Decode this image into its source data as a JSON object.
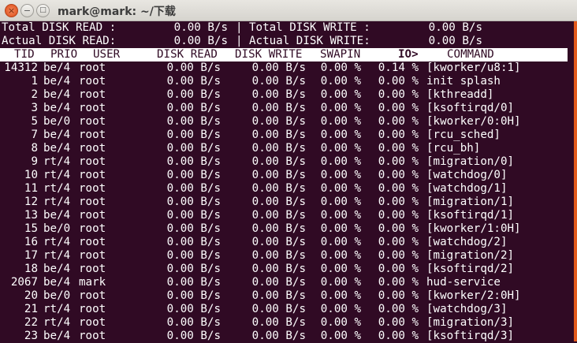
{
  "window": {
    "title": "mark@mark: ~/下载",
    "close_label": "×",
    "minimize_label": "−",
    "maximize_label": "□"
  },
  "colors": {
    "background": "#300a24",
    "foreground": "#ffffff",
    "header_bg": "#ffffff"
  },
  "summary": {
    "total_read_label": "Total DISK READ :",
    "total_read": "0.00 B/s",
    "total_write_label": "Total DISK WRITE :",
    "total_write": "0.00 B/s",
    "actual_read_label": "Actual DISK READ:",
    "actual_read": "0.00 B/s",
    "actual_write_label": "Actual DISK WRITE:",
    "actual_write": "0.00 B/s",
    "separator": "|"
  },
  "columns": {
    "tid": "TID",
    "prio": "PRIO",
    "user": "USER",
    "disk_read": "DISK READ",
    "disk_write": "DISK WRITE",
    "swapin": "SWAPIN",
    "io": "IO>",
    "command": "COMMAND"
  },
  "rows": [
    {
      "tid": "14312",
      "prio": "be/4",
      "user": "root",
      "read": "0.00 B/s",
      "write": "0.00 B/s",
      "swapin": "0.00 %",
      "io": "0.14 %",
      "command": "[kworker/u8:1]"
    },
    {
      "tid": "1",
      "prio": "be/4",
      "user": "root",
      "read": "0.00 B/s",
      "write": "0.00 B/s",
      "swapin": "0.00 %",
      "io": "0.00 %",
      "command": "init splash"
    },
    {
      "tid": "2",
      "prio": "be/4",
      "user": "root",
      "read": "0.00 B/s",
      "write": "0.00 B/s",
      "swapin": "0.00 %",
      "io": "0.00 %",
      "command": "[kthreadd]"
    },
    {
      "tid": "3",
      "prio": "be/4",
      "user": "root",
      "read": "0.00 B/s",
      "write": "0.00 B/s",
      "swapin": "0.00 %",
      "io": "0.00 %",
      "command": "[ksoftirqd/0]"
    },
    {
      "tid": "5",
      "prio": "be/0",
      "user": "root",
      "read": "0.00 B/s",
      "write": "0.00 B/s",
      "swapin": "0.00 %",
      "io": "0.00 %",
      "command": "[kworker/0:0H]"
    },
    {
      "tid": "7",
      "prio": "be/4",
      "user": "root",
      "read": "0.00 B/s",
      "write": "0.00 B/s",
      "swapin": "0.00 %",
      "io": "0.00 %",
      "command": "[rcu_sched]"
    },
    {
      "tid": "8",
      "prio": "be/4",
      "user": "root",
      "read": "0.00 B/s",
      "write": "0.00 B/s",
      "swapin": "0.00 %",
      "io": "0.00 %",
      "command": "[rcu_bh]"
    },
    {
      "tid": "9",
      "prio": "rt/4",
      "user": "root",
      "read": "0.00 B/s",
      "write": "0.00 B/s",
      "swapin": "0.00 %",
      "io": "0.00 %",
      "command": "[migration/0]"
    },
    {
      "tid": "10",
      "prio": "rt/4",
      "user": "root",
      "read": "0.00 B/s",
      "write": "0.00 B/s",
      "swapin": "0.00 %",
      "io": "0.00 %",
      "command": "[watchdog/0]"
    },
    {
      "tid": "11",
      "prio": "rt/4",
      "user": "root",
      "read": "0.00 B/s",
      "write": "0.00 B/s",
      "swapin": "0.00 %",
      "io": "0.00 %",
      "command": "[watchdog/1]"
    },
    {
      "tid": "12",
      "prio": "rt/4",
      "user": "root",
      "read": "0.00 B/s",
      "write": "0.00 B/s",
      "swapin": "0.00 %",
      "io": "0.00 %",
      "command": "[migration/1]"
    },
    {
      "tid": "13",
      "prio": "be/4",
      "user": "root",
      "read": "0.00 B/s",
      "write": "0.00 B/s",
      "swapin": "0.00 %",
      "io": "0.00 %",
      "command": "[ksoftirqd/1]"
    },
    {
      "tid": "15",
      "prio": "be/0",
      "user": "root",
      "read": "0.00 B/s",
      "write": "0.00 B/s",
      "swapin": "0.00 %",
      "io": "0.00 %",
      "command": "[kworker/1:0H]"
    },
    {
      "tid": "16",
      "prio": "rt/4",
      "user": "root",
      "read": "0.00 B/s",
      "write": "0.00 B/s",
      "swapin": "0.00 %",
      "io": "0.00 %",
      "command": "[watchdog/2]"
    },
    {
      "tid": "17",
      "prio": "rt/4",
      "user": "root",
      "read": "0.00 B/s",
      "write": "0.00 B/s",
      "swapin": "0.00 %",
      "io": "0.00 %",
      "command": "[migration/2]"
    },
    {
      "tid": "18",
      "prio": "be/4",
      "user": "root",
      "read": "0.00 B/s",
      "write": "0.00 B/s",
      "swapin": "0.00 %",
      "io": "0.00 %",
      "command": "[ksoftirqd/2]"
    },
    {
      "tid": "2067",
      "prio": "be/4",
      "user": "mark",
      "read": "0.00 B/s",
      "write": "0.00 B/s",
      "swapin": "0.00 %",
      "io": "0.00 %",
      "command": "hud-service"
    },
    {
      "tid": "20",
      "prio": "be/0",
      "user": "root",
      "read": "0.00 B/s",
      "write": "0.00 B/s",
      "swapin": "0.00 %",
      "io": "0.00 %",
      "command": "[kworker/2:0H]"
    },
    {
      "tid": "21",
      "prio": "rt/4",
      "user": "root",
      "read": "0.00 B/s",
      "write": "0.00 B/s",
      "swapin": "0.00 %",
      "io": "0.00 %",
      "command": "[watchdog/3]"
    },
    {
      "tid": "22",
      "prio": "rt/4",
      "user": "root",
      "read": "0.00 B/s",
      "write": "0.00 B/s",
      "swapin": "0.00 %",
      "io": "0.00 %",
      "command": "[migration/3]"
    },
    {
      "tid": "23",
      "prio": "be/4",
      "user": "root",
      "read": "0.00 B/s",
      "write": "0.00 B/s",
      "swapin": "0.00 %",
      "io": "0.00 %",
      "command": "[ksoftirqd/3]"
    }
  ]
}
